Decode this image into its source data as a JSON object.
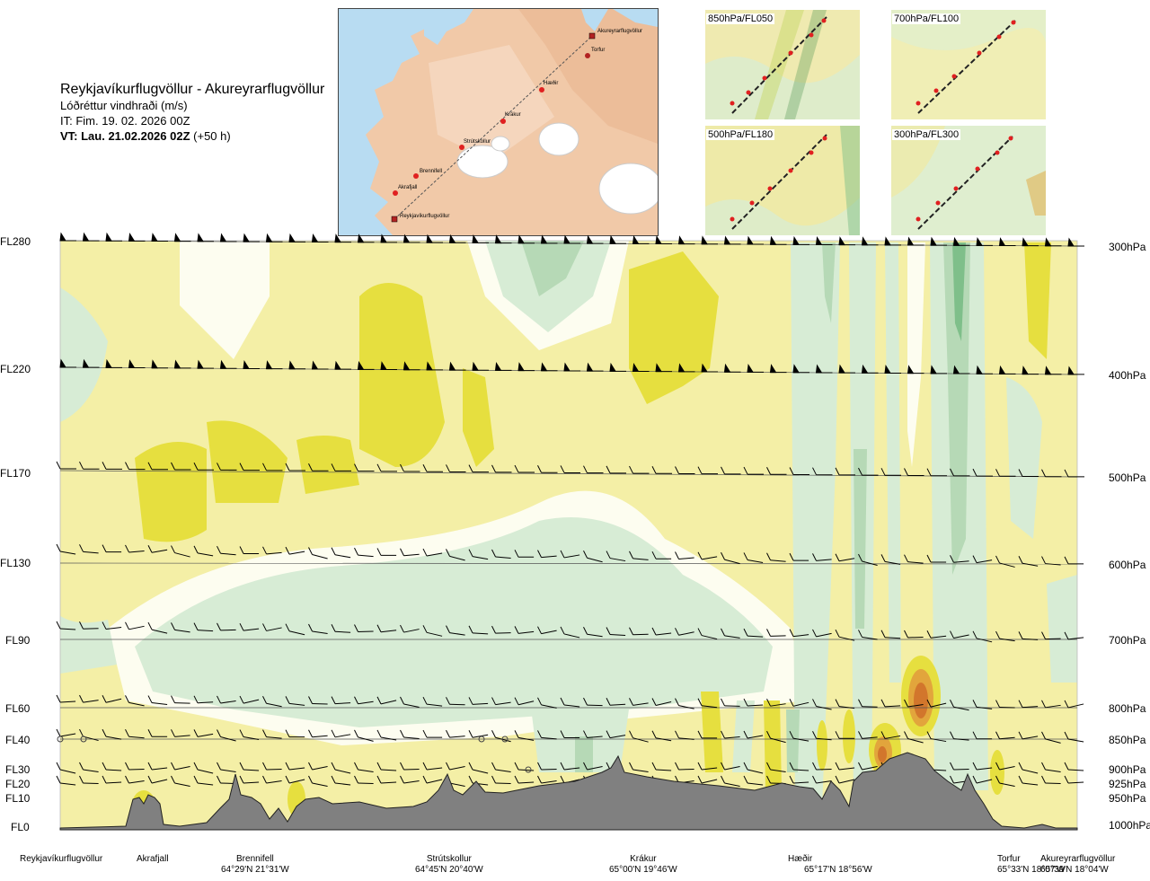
{
  "header": {
    "route": "Reykjavíkurflugvöllur - Akureyrarflugvöllur",
    "parameter": "Lóðréttur vindhraði (m/s)",
    "issue_time": "IT: Fim. 19. 02. 2026 00Z",
    "valid_time": "VT: Lau. 21.02.2026 02Z",
    "lead": "(+50 h)"
  },
  "route_map": {
    "waypoints": [
      "Akureyrarflugvöllur",
      "Torfur",
      "Hæðir",
      "Krákur",
      "Strútskollur",
      "Brennifell",
      "Akrafjall",
      "Reykjavíkurflugvöllur"
    ]
  },
  "panels": [
    {
      "label": "850hPa/FL050"
    },
    {
      "label": "700hPa/FL100"
    },
    {
      "label": "500hPa/FL180"
    },
    {
      "label": "300hPa/FL300"
    }
  ],
  "axis_left": [
    "FL280",
    "FL220",
    "FL170",
    "FL130",
    "FL90",
    "FL60",
    "FL40",
    "FL30",
    "FL20",
    "FL10",
    "FL0"
  ],
  "axis_right": [
    "300hPa",
    "400hPa",
    "500hPa",
    "600hPa",
    "700hPa",
    "800hPa",
    "850hPa",
    "900hPa",
    "925hPa",
    "950hPa",
    "1000hPa"
  ],
  "locations": [
    {
      "name": "Reykjavíkurflugvöllur",
      "coord": ""
    },
    {
      "name": "Akrafjall",
      "coord": ""
    },
    {
      "name": "Brennifell",
      "coord": "64°29'N 21°31'W"
    },
    {
      "name": "Strútskollur",
      "coord": "64°45'N 20°40'W"
    },
    {
      "name": "Krákur",
      "coord": "65°00'N 19°46'W"
    },
    {
      "name": "Hæðir",
      "coord": "65°17'N 18°56'W"
    },
    {
      "name": "Torfur",
      "coord": "65°33'N 18°07'W"
    },
    {
      "name": "Akureyrarflugvöllur",
      "coord": "65°39'N 18°04'W"
    }
  ],
  "colors": {
    "rising_weak": "#f4efa6",
    "rising_mod": "#e6df3f",
    "rising_strong": "#e2a53c",
    "rising_max": "#d2762c",
    "sinking_weak": "#d7ecd5",
    "sinking_mod": "#b6d9b6",
    "sinking_strong": "#7fbf8a",
    "near_zero": "#fdfdf0",
    "terrain": "#7f7f7f",
    "sea": "#b8dcf2",
    "land": "#f1c9a8"
  },
  "chart_data": {
    "type": "heatmap",
    "title": "Reykjavíkurflugvöllur - Akureyrarflugvöllur",
    "variable": "Lóðréttur vindhraði (m/s)",
    "x_categories": [
      "Reykjavíkurflugvöllur",
      "Akrafjall",
      "Brennifell",
      "Strútskollur",
      "Krákur",
      "Hæðir",
      "Torfur",
      "Akureyrarflugvöllur"
    ],
    "flight_levels": [
      "FL0",
      "FL10",
      "FL20",
      "FL30",
      "FL40",
      "FL60",
      "FL90",
      "FL130",
      "FL170",
      "FL220",
      "FL280"
    ],
    "pressure_levels_hpa": [
      1000,
      950,
      925,
      900,
      850,
      800,
      700,
      600,
      500,
      400,
      300
    ],
    "features": [
      {
        "kind": "updraft",
        "location": "between Hæðir and Torfur",
        "level": "FL50-FL80",
        "intensity": "strongest (orange core)"
      },
      {
        "kind": "updraft",
        "location": "near Hæðir",
        "level": "FL30-FL45",
        "intensity": "strong"
      },
      {
        "kind": "downdraft",
        "location": "Strútskollur to Krákur",
        "level": "FL60-FL130",
        "intensity": "weak, broad"
      },
      {
        "kind": "downdraft",
        "location": "Hæðir to Akureyrarflugvöllur",
        "level": "FL0-FL280",
        "intensity": "banded waves"
      },
      {
        "kind": "updraft",
        "location": "Akrafjall to Strútskollur",
        "level": "FL150-FL250",
        "intensity": "moderate"
      }
    ],
    "legend": "none",
    "grid": false
  }
}
